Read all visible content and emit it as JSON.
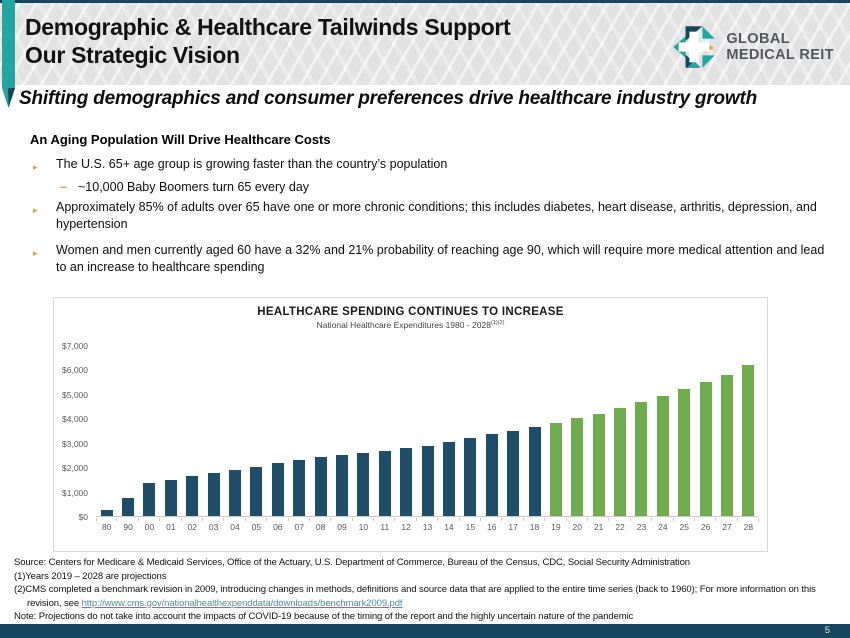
{
  "header": {
    "title_line1": "Demographic & Healthcare Tailwinds Support",
    "title_line2": "Our Strategic Vision",
    "logo_line1": "GLOBAL",
    "logo_line2": "MEDICAL REIT",
    "subtitle": "Shifting demographics and consumer preferences drive healthcare industry growth"
  },
  "content": {
    "section_heading": "An Aging Population Will Drive Healthcare Costs",
    "bullets": [
      {
        "level": 1,
        "text": "The U.S. 65+ age group is growing faster than the country’s population"
      },
      {
        "level": 2,
        "text": "~10,000 Baby Boomers turn 65 every day"
      },
      {
        "level": 1,
        "text": "Approximately 85% of adults over 65 have one or more chronic conditions; this includes diabetes, heart disease, arthritis, depression, and hypertension"
      },
      {
        "level": 1,
        "text": "Women and men currently aged 60 have a 32% and 21% probability of reaching age 90, which will require more medical attention and lead to an increase to healthcare spending"
      }
    ]
  },
  "chart_data": {
    "type": "bar",
    "title": "HEALTHCARE SPENDING CONTINUES TO INCREASE",
    "subtitle": "National Healthcare Expenditures  1980 - 2028",
    "subtitle_superscript": "(1)(2)",
    "categories": [
      "80",
      "90",
      "00",
      "01",
      "02",
      "03",
      "04",
      "05",
      "06",
      "07",
      "08",
      "09",
      "10",
      "11",
      "12",
      "13",
      "14",
      "15",
      "16",
      "17",
      "18",
      "19",
      "20",
      "21",
      "22",
      "23",
      "24",
      "25",
      "26",
      "27",
      "28"
    ],
    "values": [
      255,
      721,
      1369,
      1486,
      1629,
      1768,
      1896,
      2024,
      2156,
      2295,
      2399,
      2494,
      2589,
      2675,
      2796,
      2877,
      3026,
      3200,
      3347,
      3492,
      3649,
      3795,
      3997,
      4187,
      4411,
      4658,
      4906,
      5184,
      5480,
      5785,
      6193
    ],
    "projected_start_index": 21,
    "projected_start_category": "19",
    "colors": {
      "actual": "#1F4E6B",
      "projected": "#6FAC4D"
    },
    "y_tick_values": [
      7000,
      6000,
      5000,
      4000,
      3000,
      2000,
      1000,
      0
    ],
    "y_tick_labels": [
      "$7,000",
      "$6,000",
      "$5,000",
      "$4,000",
      "$3,000",
      "$2,000",
      "$1,000",
      "$0"
    ],
    "ylim": [
      0,
      7000
    ],
    "grid": false,
    "legend": "none"
  },
  "footer": {
    "source": "Source: Centers for Medicare & Medicaid Services, Office of the Actuary, U.S. Department of Commerce, Bureau of the Census, CDC, Social Security Administration",
    "footnote1": "(1)Years 2019 – 2028 are projections",
    "footnote2_prefix": "(2)CMS completed a benchmark revision in 2009, introducing changes in methods, definitions and source data that are applied to the entire time series (back to 1960); For more information on this revision, see ",
    "footnote2_link": "http://www.cms.gov/nationalhealthexpenddata/downloads/benchmark2009.pdf",
    "note": "Note: Projections do not take into account the impacts of COVID-19 because of the timing of the report and the highly uncertain nature of the pandemic",
    "page_number": "5"
  },
  "colors": {
    "accent_teal": "#21A7A0",
    "dark_navy": "#16455F",
    "bullet_orange": "#E39B40",
    "header_gray": "#E9E9E9",
    "link_teal": "#3E93A8"
  }
}
